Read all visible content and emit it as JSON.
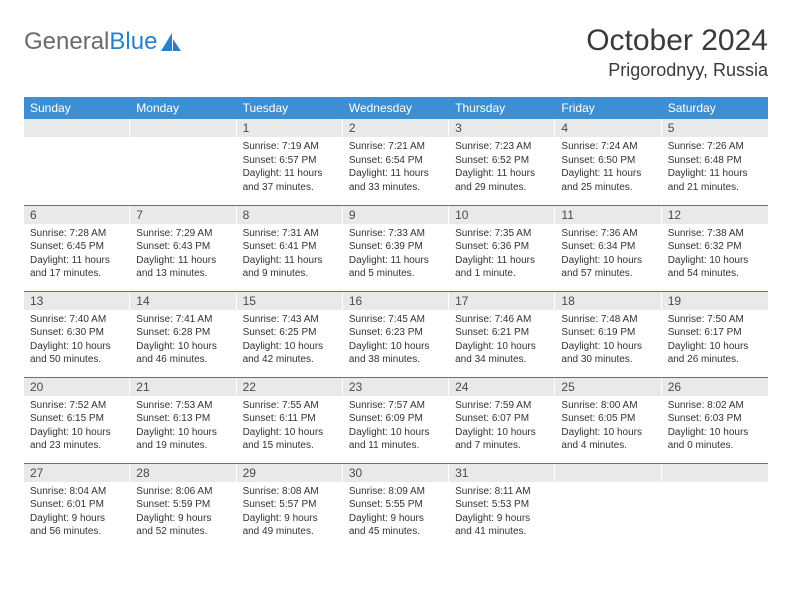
{
  "logo": {
    "text1": "General",
    "text2": "Blue"
  },
  "header": {
    "month": "October 2024",
    "location": "Prigorodnyy, Russia"
  },
  "colors": {
    "header_bg": "#3d8fd1",
    "header_text": "#ffffff",
    "daynum_bg": "#e9e9e9",
    "row_border": "#2a7fc9",
    "logo_gray": "#6a6a6a",
    "logo_blue": "#2a7fc9"
  },
  "day_headers": [
    "Sunday",
    "Monday",
    "Tuesday",
    "Wednesday",
    "Thursday",
    "Friday",
    "Saturday"
  ],
  "weeks": [
    [
      null,
      null,
      {
        "n": "1",
        "sr": "Sunrise: 7:19 AM",
        "ss": "Sunset: 6:57 PM",
        "dl": "Daylight: 11 hours and 37 minutes."
      },
      {
        "n": "2",
        "sr": "Sunrise: 7:21 AM",
        "ss": "Sunset: 6:54 PM",
        "dl": "Daylight: 11 hours and 33 minutes."
      },
      {
        "n": "3",
        "sr": "Sunrise: 7:23 AM",
        "ss": "Sunset: 6:52 PM",
        "dl": "Daylight: 11 hours and 29 minutes."
      },
      {
        "n": "4",
        "sr": "Sunrise: 7:24 AM",
        "ss": "Sunset: 6:50 PM",
        "dl": "Daylight: 11 hours and 25 minutes."
      },
      {
        "n": "5",
        "sr": "Sunrise: 7:26 AM",
        "ss": "Sunset: 6:48 PM",
        "dl": "Daylight: 11 hours and 21 minutes."
      }
    ],
    [
      {
        "n": "6",
        "sr": "Sunrise: 7:28 AM",
        "ss": "Sunset: 6:45 PM",
        "dl": "Daylight: 11 hours and 17 minutes."
      },
      {
        "n": "7",
        "sr": "Sunrise: 7:29 AM",
        "ss": "Sunset: 6:43 PM",
        "dl": "Daylight: 11 hours and 13 minutes."
      },
      {
        "n": "8",
        "sr": "Sunrise: 7:31 AM",
        "ss": "Sunset: 6:41 PM",
        "dl": "Daylight: 11 hours and 9 minutes."
      },
      {
        "n": "9",
        "sr": "Sunrise: 7:33 AM",
        "ss": "Sunset: 6:39 PM",
        "dl": "Daylight: 11 hours and 5 minutes."
      },
      {
        "n": "10",
        "sr": "Sunrise: 7:35 AM",
        "ss": "Sunset: 6:36 PM",
        "dl": "Daylight: 11 hours and 1 minute."
      },
      {
        "n": "11",
        "sr": "Sunrise: 7:36 AM",
        "ss": "Sunset: 6:34 PM",
        "dl": "Daylight: 10 hours and 57 minutes."
      },
      {
        "n": "12",
        "sr": "Sunrise: 7:38 AM",
        "ss": "Sunset: 6:32 PM",
        "dl": "Daylight: 10 hours and 54 minutes."
      }
    ],
    [
      {
        "n": "13",
        "sr": "Sunrise: 7:40 AM",
        "ss": "Sunset: 6:30 PM",
        "dl": "Daylight: 10 hours and 50 minutes."
      },
      {
        "n": "14",
        "sr": "Sunrise: 7:41 AM",
        "ss": "Sunset: 6:28 PM",
        "dl": "Daylight: 10 hours and 46 minutes."
      },
      {
        "n": "15",
        "sr": "Sunrise: 7:43 AM",
        "ss": "Sunset: 6:25 PM",
        "dl": "Daylight: 10 hours and 42 minutes."
      },
      {
        "n": "16",
        "sr": "Sunrise: 7:45 AM",
        "ss": "Sunset: 6:23 PM",
        "dl": "Daylight: 10 hours and 38 minutes."
      },
      {
        "n": "17",
        "sr": "Sunrise: 7:46 AM",
        "ss": "Sunset: 6:21 PM",
        "dl": "Daylight: 10 hours and 34 minutes."
      },
      {
        "n": "18",
        "sr": "Sunrise: 7:48 AM",
        "ss": "Sunset: 6:19 PM",
        "dl": "Daylight: 10 hours and 30 minutes."
      },
      {
        "n": "19",
        "sr": "Sunrise: 7:50 AM",
        "ss": "Sunset: 6:17 PM",
        "dl": "Daylight: 10 hours and 26 minutes."
      }
    ],
    [
      {
        "n": "20",
        "sr": "Sunrise: 7:52 AM",
        "ss": "Sunset: 6:15 PM",
        "dl": "Daylight: 10 hours and 23 minutes."
      },
      {
        "n": "21",
        "sr": "Sunrise: 7:53 AM",
        "ss": "Sunset: 6:13 PM",
        "dl": "Daylight: 10 hours and 19 minutes."
      },
      {
        "n": "22",
        "sr": "Sunrise: 7:55 AM",
        "ss": "Sunset: 6:11 PM",
        "dl": "Daylight: 10 hours and 15 minutes."
      },
      {
        "n": "23",
        "sr": "Sunrise: 7:57 AM",
        "ss": "Sunset: 6:09 PM",
        "dl": "Daylight: 10 hours and 11 minutes."
      },
      {
        "n": "24",
        "sr": "Sunrise: 7:59 AM",
        "ss": "Sunset: 6:07 PM",
        "dl": "Daylight: 10 hours and 7 minutes."
      },
      {
        "n": "25",
        "sr": "Sunrise: 8:00 AM",
        "ss": "Sunset: 6:05 PM",
        "dl": "Daylight: 10 hours and 4 minutes."
      },
      {
        "n": "26",
        "sr": "Sunrise: 8:02 AM",
        "ss": "Sunset: 6:03 PM",
        "dl": "Daylight: 10 hours and 0 minutes."
      }
    ],
    [
      {
        "n": "27",
        "sr": "Sunrise: 8:04 AM",
        "ss": "Sunset: 6:01 PM",
        "dl": "Daylight: 9 hours and 56 minutes."
      },
      {
        "n": "28",
        "sr": "Sunrise: 8:06 AM",
        "ss": "Sunset: 5:59 PM",
        "dl": "Daylight: 9 hours and 52 minutes."
      },
      {
        "n": "29",
        "sr": "Sunrise: 8:08 AM",
        "ss": "Sunset: 5:57 PM",
        "dl": "Daylight: 9 hours and 49 minutes."
      },
      {
        "n": "30",
        "sr": "Sunrise: 8:09 AM",
        "ss": "Sunset: 5:55 PM",
        "dl": "Daylight: 9 hours and 45 minutes."
      },
      {
        "n": "31",
        "sr": "Sunrise: 8:11 AM",
        "ss": "Sunset: 5:53 PM",
        "dl": "Daylight: 9 hours and 41 minutes."
      },
      null,
      null
    ]
  ]
}
